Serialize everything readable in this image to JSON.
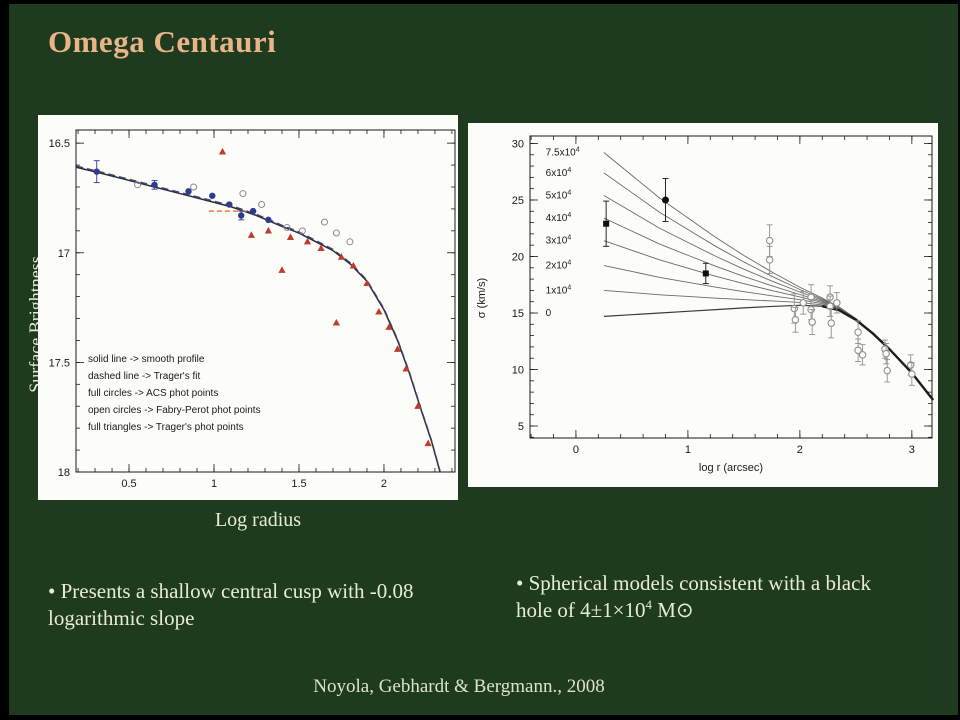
{
  "slide": {
    "title": "Omega Centauri",
    "citation": "Noyola, Gebhardt & Bergmann., 2008",
    "bullets": {
      "left": "• Presents a shallow central cusp with -0.08 logarithmic slope",
      "right": {
        "pre": "• Spherical models consistent with a black hole of 4±1×10",
        "exp": "4",
        "post": " M⊙"
      }
    },
    "colors": {
      "background": "#1e3b1f",
      "title": "#eab586",
      "text": "#e9ebd8"
    }
  },
  "chart_data": [
    {
      "id": "surface-brightness-profile",
      "type": "line+scatter",
      "xlabel": "Log radius",
      "ylabel": "Surface Brightness",
      "xlim": [
        0.188,
        2.418
      ],
      "ylim": [
        16.44,
        18.0
      ],
      "xticks": [
        {
          "v": 0.5,
          "l": "0.5"
        },
        {
          "v": 1,
          "l": "1"
        },
        {
          "v": 1.5,
          "l": "1.5"
        },
        {
          "v": 2,
          "l": "2"
        }
      ],
      "yticks": [
        {
          "v": 16.5,
          "l": "16.5"
        },
        {
          "v": 17,
          "l": "17"
        },
        {
          "v": 17.5,
          "l": "17.5"
        },
        {
          "v": 18,
          "l": "18"
        }
      ],
      "minor_x": 0.1,
      "minor_y": 0.1,
      "legend": [
        "solid line -> smooth profile",
        "dashed line -> Trager's fit",
        "full circles -> ACS phot points",
        "open circles -> Fabry-Perot phot points",
        "full triangles -> Trager's phot points"
      ],
      "series": {
        "smooth_profile": [
          [
            0.19,
            16.61
          ],
          [
            0.35,
            16.64
          ],
          [
            0.5,
            16.67
          ],
          [
            0.65,
            16.7
          ],
          [
            0.8,
            16.73
          ],
          [
            0.95,
            16.76
          ],
          [
            1.1,
            16.79
          ],
          [
            1.25,
            16.83
          ],
          [
            1.4,
            16.88
          ],
          [
            1.5,
            16.91
          ],
          [
            1.6,
            16.95
          ],
          [
            1.7,
            16.99
          ],
          [
            1.8,
            17.05
          ],
          [
            1.9,
            17.13
          ],
          [
            2.0,
            17.26
          ],
          [
            2.08,
            17.4
          ],
          [
            2.15,
            17.55
          ],
          [
            2.22,
            17.72
          ],
          [
            2.28,
            17.86
          ],
          [
            2.33,
            18.0
          ]
        ],
        "tragers_fit_note": "dashed line overlying the smooth profile",
        "fabry_perot_dash_segment": [
          [
            0.97,
            16.81
          ],
          [
            1.2,
            16.81
          ]
        ],
        "acs_points": [
          {
            "x": 0.31,
            "y": 16.63,
            "e": 0.05
          },
          {
            "x": 0.65,
            "y": 16.69,
            "e": 0.02
          },
          {
            "x": 0.85,
            "y": 16.72,
            "e": 0.015
          },
          {
            "x": 0.99,
            "y": 16.74,
            "e": 0.015
          },
          {
            "x": 1.09,
            "y": 16.78,
            "e": 0.015
          },
          {
            "x": 1.16,
            "y": 16.83,
            "e": 0.02
          },
          {
            "x": 1.23,
            "y": 16.81,
            "e": 0.015
          },
          {
            "x": 1.32,
            "y": 16.85,
            "e": 0.015
          }
        ],
        "fabry_perot_points": [
          [
            0.55,
            16.69
          ],
          [
            0.88,
            16.7
          ],
          [
            1.17,
            16.73
          ],
          [
            1.28,
            16.78
          ],
          [
            1.43,
            16.885
          ],
          [
            1.52,
            16.9
          ],
          [
            1.65,
            16.86
          ],
          [
            1.72,
            16.91
          ],
          [
            1.8,
            16.95
          ]
        ],
        "trager_points": [
          [
            1.05,
            16.54
          ],
          [
            1.22,
            16.92
          ],
          [
            1.32,
            16.9
          ],
          [
            1.4,
            17.08
          ],
          [
            1.45,
            16.93
          ],
          [
            1.55,
            16.95
          ],
          [
            1.63,
            16.98
          ],
          [
            1.72,
            17.32
          ],
          [
            1.75,
            17.02
          ],
          [
            1.82,
            17.06
          ],
          [
            1.9,
            17.14
          ],
          [
            1.97,
            17.27
          ],
          [
            2.03,
            17.34
          ],
          [
            2.08,
            17.44
          ],
          [
            2.13,
            17.53
          ],
          [
            2.2,
            17.7
          ],
          [
            2.26,
            17.87
          ]
        ]
      },
      "colors": {
        "profile": "#2b2d3a",
        "dash": "#3c4378",
        "acs": "#2e3b8e",
        "open_circle": "#8b8b8b",
        "triangle": "#c23b2a",
        "orange_dash": "#e08040",
        "panel": "#fcfcf9",
        "ink": "#1a1a1a"
      }
    },
    {
      "id": "velocity-dispersion-models",
      "type": "line+scatter",
      "xlabel": "log r (arcsec)",
      "ylabel": "σ  (km/s)",
      "xlim": [
        -0.41,
        3.18
      ],
      "ylim": [
        30.66,
        3.94
      ],
      "xticks": [
        {
          "v": 0,
          "l": "0"
        },
        {
          "v": 1,
          "l": "1"
        },
        {
          "v": 2,
          "l": "2"
        },
        {
          "v": 3,
          "l": "3"
        }
      ],
      "yticks": [
        {
          "v": 5,
          "l": "5"
        },
        {
          "v": 10,
          "l": "10"
        },
        {
          "v": 15,
          "l": "15"
        },
        {
          "v": 20,
          "l": "20"
        },
        {
          "v": 25,
          "l": "25"
        },
        {
          "v": 30,
          "l": "30"
        }
      ],
      "minor_x": 0.2,
      "minor_y": 1,
      "curve_x": [
        0.25,
        0.5,
        0.75,
        1.0,
        1.25,
        1.5,
        1.75,
        2.0,
        2.2,
        2.35,
        2.5,
        2.65,
        2.8,
        3.0,
        3.19
      ],
      "base_curve": [
        14.7,
        14.85,
        15.0,
        15.15,
        15.3,
        15.45,
        15.58,
        15.68,
        15.6,
        15.25,
        14.4,
        13.2,
        11.8,
        9.7,
        7.3
      ],
      "decay_profile": [
        1,
        0.85,
        0.7,
        0.57,
        0.44,
        0.32,
        0.21,
        0.11,
        0.05,
        0.02,
        0.008,
        0,
        0,
        0,
        0
      ],
      "label_x": -0.27,
      "model_curves": [
        {
          "label": "7.5x10",
          "exp": "4",
          "excess": 14.5,
          "label_y": 29.2
        },
        {
          "label": "6x10",
          "exp": "4",
          "excess": 12.7,
          "label_y": 27.4
        },
        {
          "label": "5x10",
          "exp": "4",
          "excess": 10.7,
          "label_y": 25.4
        },
        {
          "label": "4x10",
          "exp": "4",
          "excess": 8.7,
          "label_y": 23.4
        },
        {
          "label": "3x10",
          "exp": "4",
          "excess": 6.7,
          "label_y": 21.4
        },
        {
          "label": "2x10",
          "exp": "4",
          "excess": 4.5,
          "label_y": 19.2
        },
        {
          "label": "1x10",
          "exp": "4",
          "excess": 2.3,
          "label_y": 17.0
        },
        {
          "label": "0",
          "exp": "",
          "excess": 0,
          "label_y": 15.0
        }
      ],
      "filled_points": [
        {
          "x": 0.27,
          "y": 22.9,
          "e": 2.0,
          "shape": "square"
        },
        {
          "x": 0.8,
          "y": 25.0,
          "e": 1.9,
          "shape": "circle"
        },
        {
          "x": 1.16,
          "y": 18.5,
          "e": 0.9,
          "shape": "square"
        }
      ],
      "open_points": [
        [
          1.73,
          21.4,
          1.4
        ],
        [
          1.73,
          19.7,
          1.2
        ],
        [
          1.95,
          15.4,
          1.3
        ],
        [
          1.96,
          14.4,
          1.1
        ],
        [
          2.03,
          15.9,
          1.0
        ],
        [
          2.1,
          16.4,
          1.1
        ],
        [
          2.1,
          15.3,
          0.9
        ],
        [
          2.11,
          14.2,
          1.1
        ],
        [
          2.27,
          16.4,
          1.0
        ],
        [
          2.27,
          15.6,
          0.9
        ],
        [
          2.28,
          14.1,
          1.3
        ],
        [
          2.33,
          15.9,
          0.9
        ],
        [
          2.52,
          13.3,
          1.0
        ],
        [
          2.52,
          11.7,
          1.0
        ],
        [
          2.56,
          11.3,
          0.9
        ],
        [
          2.76,
          11.8,
          0.8
        ],
        [
          2.77,
          11.4,
          0.9
        ],
        [
          2.78,
          9.9,
          1.0
        ],
        [
          2.99,
          10.4,
          0.9
        ],
        [
          3.0,
          9.6,
          1.0
        ]
      ],
      "colors": {
        "curves": "#6a6a6a",
        "base": "#3a3a3a",
        "merged": "#1c1c1c",
        "open": "#8f8f8f",
        "filled": "#101010",
        "panel": "#fcfcf9",
        "ink": "#1a1a1a"
      }
    }
  ]
}
